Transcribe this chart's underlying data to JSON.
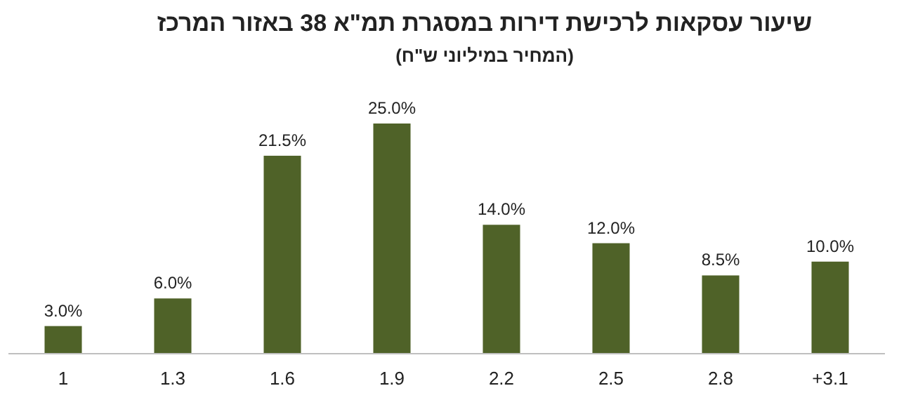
{
  "chart_data": {
    "type": "bar",
    "title": "שיעור עסקאות לרכישת דירות במסגרת תמ\"א 38 באזור המרכז",
    "subtitle": "(המחיר במיליוני ש\"ח)",
    "categories": [
      "1",
      "1.3",
      "1.6",
      "1.9",
      "2.2",
      "2.5",
      "2.8",
      "+3.1"
    ],
    "values": [
      3,
      6,
      21.5,
      25,
      14,
      12,
      8.5,
      10
    ],
    "value_labels": [
      "3.0%",
      "6.0%",
      "21.5%",
      "25.0%",
      "14.0%",
      "12.0%",
      "8.5%",
      "10.0%"
    ],
    "color": "#4f6228"
  }
}
